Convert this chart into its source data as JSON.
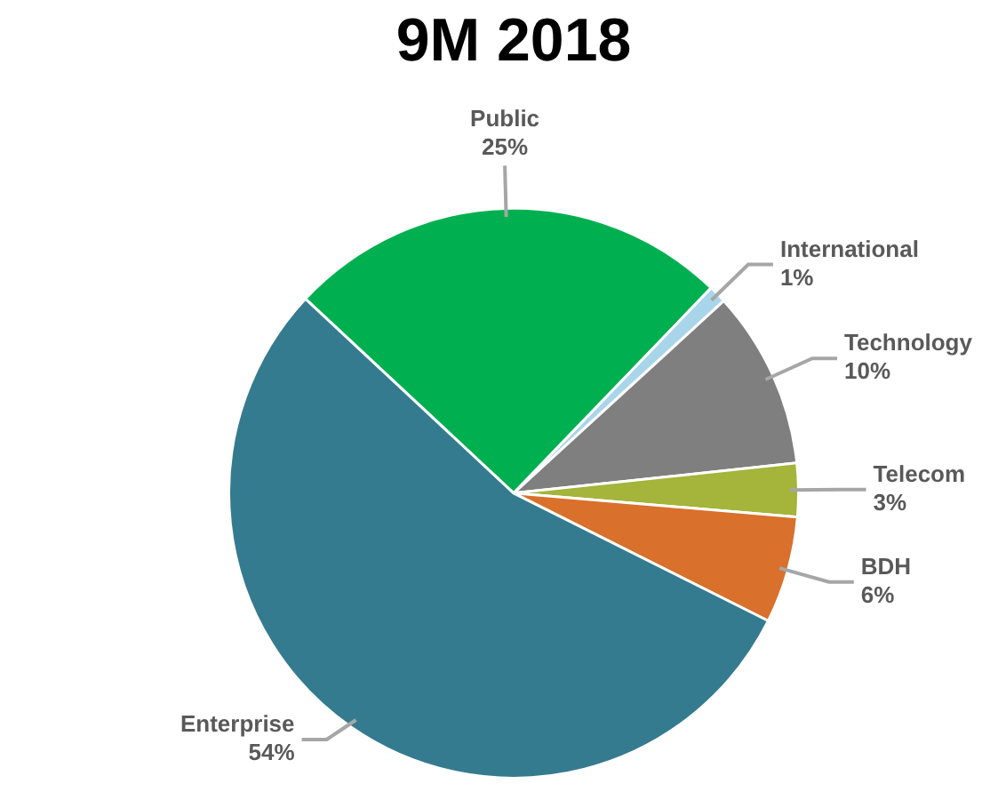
{
  "chart_data": {
    "type": "pie",
    "title": "9M 2018",
    "categories": [
      "Public",
      "International",
      "Technology",
      "Telecom",
      "BDH",
      "Enterprise"
    ],
    "values": [
      25,
      1,
      10,
      3,
      6,
      54
    ],
    "value_labels": [
      "25%",
      "1%",
      "10%",
      "3%",
      "6%",
      "54%"
    ],
    "colors": [
      "#00b050",
      "#a9d5ea",
      "#7f7f7f",
      "#a5b43a",
      "#d9702b",
      "#357b8f"
    ],
    "legend": false
  }
}
